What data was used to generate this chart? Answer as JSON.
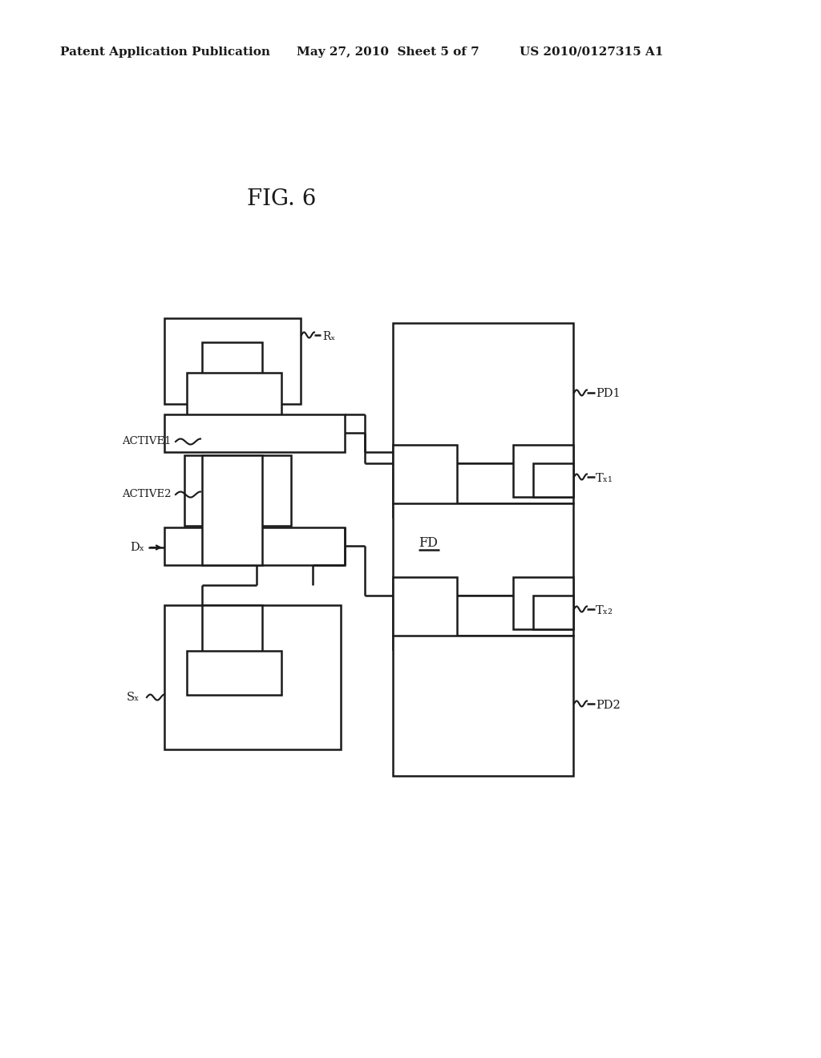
{
  "header_left": "Patent Application Publication",
  "header_center": "May 27, 2010  Sheet 5 of 7",
  "header_right": "US 2010/0127315 A1",
  "fig_title": "FIG. 6",
  "bg": "#ffffff",
  "lc": "#1a1a1a",
  "lw": 1.8,
  "fig_fs": 20,
  "hdr_fs": 11,
  "lbl_fs": 10.5,
  "small_fs": 9.5
}
